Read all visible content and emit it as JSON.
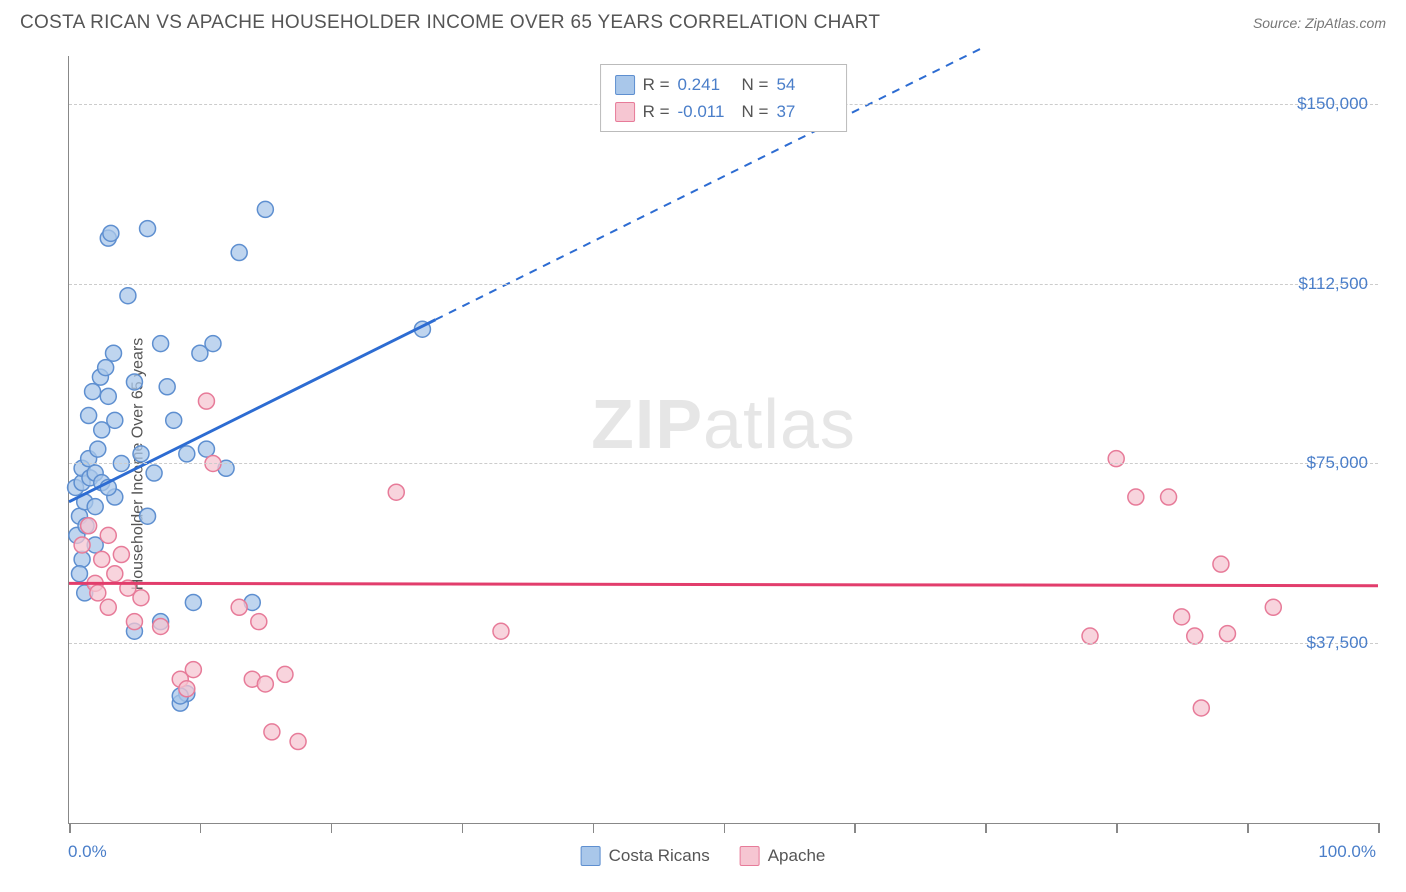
{
  "header": {
    "title": "COSTA RICAN VS APACHE HOUSEHOLDER INCOME OVER 65 YEARS CORRELATION CHART",
    "source_label": "Source:",
    "source_name": "ZipAtlas.com"
  },
  "watermark": {
    "zip": "ZIP",
    "atlas": "atlas"
  },
  "y_axis": {
    "label": "Householder Income Over 65 years",
    "min": 0,
    "max": 160000,
    "ticks": [
      37500,
      75000,
      112500,
      150000
    ],
    "tick_labels": [
      "$37,500",
      "$75,000",
      "$112,500",
      "$150,000"
    ],
    "tick_color": "#4a7ec9",
    "grid_color": "#cccccc",
    "label_fontsize": 16
  },
  "x_axis": {
    "min": 0,
    "max": 100,
    "min_label": "0.0%",
    "max_label": "100.0%",
    "ticks": [
      0,
      10,
      20,
      30,
      40,
      50,
      60,
      70,
      80,
      90,
      100
    ],
    "label_color": "#4a7ec9"
  },
  "series": {
    "costa_ricans": {
      "label": "Costa Ricans",
      "fill": "#a9c7ea",
      "stroke": "#5e8fd0",
      "trend_color": "#2d6cd2",
      "trend_style": "solid-then-dashed",
      "trend_start": [
        0,
        67000
      ],
      "trend_solid_end": [
        28,
        105000
      ],
      "trend_dashed_end": [
        70,
        162000
      ],
      "R": "0.241",
      "N": "54",
      "points": [
        [
          0.5,
          70000
        ],
        [
          0.6,
          60000
        ],
        [
          0.8,
          64000
        ],
        [
          1.0,
          71000
        ],
        [
          1.0,
          74000
        ],
        [
          1.2,
          67000
        ],
        [
          1.3,
          62000
        ],
        [
          1.5,
          76000
        ],
        [
          1.5,
          85000
        ],
        [
          1.6,
          72000
        ],
        [
          1.8,
          90000
        ],
        [
          2.0,
          73000
        ],
        [
          2.0,
          66000
        ],
        [
          2.2,
          78000
        ],
        [
          2.4,
          93000
        ],
        [
          2.5,
          82000
        ],
        [
          2.5,
          71000
        ],
        [
          2.8,
          95000
        ],
        [
          3.0,
          122000
        ],
        [
          3.0,
          89000
        ],
        [
          3.2,
          123000
        ],
        [
          3.4,
          98000
        ],
        [
          3.5,
          84000
        ],
        [
          3.5,
          68000
        ],
        [
          4.0,
          75000
        ],
        [
          4.5,
          110000
        ],
        [
          5.0,
          92000
        ],
        [
          5.5,
          77000
        ],
        [
          6.0,
          124000
        ],
        [
          6.5,
          73000
        ],
        [
          7.0,
          100000
        ],
        [
          7.5,
          91000
        ],
        [
          8.0,
          84000
        ],
        [
          9.0,
          77000
        ],
        [
          9.5,
          46000
        ],
        [
          10.0,
          98000
        ],
        [
          10.5,
          78000
        ],
        [
          11.0,
          100000
        ],
        [
          12.0,
          74000
        ],
        [
          13.0,
          119000
        ],
        [
          14.0,
          46000
        ],
        [
          15.0,
          128000
        ],
        [
          8.5,
          25000
        ],
        [
          9.0,
          27000
        ],
        [
          8.5,
          26500
        ],
        [
          5.0,
          40000
        ],
        [
          7.0,
          42000
        ],
        [
          2.0,
          58000
        ],
        [
          27.0,
          103000
        ],
        [
          6.0,
          64000
        ],
        [
          1.0,
          55000
        ],
        [
          0.8,
          52000
        ],
        [
          1.2,
          48000
        ],
        [
          3.0,
          70000
        ]
      ]
    },
    "apache": {
      "label": "Apache",
      "fill": "#f6c6d2",
      "stroke": "#e77b99",
      "trend_color": "#e23d6c",
      "trend_style": "solid",
      "trend_start": [
        0,
        50000
      ],
      "trend_end": [
        100,
        49500
      ],
      "R": "-0.011",
      "N": "37",
      "points": [
        [
          1.0,
          58000
        ],
        [
          1.5,
          62000
        ],
        [
          2.0,
          50000
        ],
        [
          2.2,
          48000
        ],
        [
          2.5,
          55000
        ],
        [
          3.0,
          45000
        ],
        [
          3.0,
          60000
        ],
        [
          3.5,
          52000
        ],
        [
          4.0,
          56000
        ],
        [
          4.5,
          49000
        ],
        [
          5.0,
          42000
        ],
        [
          5.5,
          47000
        ],
        [
          7.0,
          41000
        ],
        [
          8.5,
          30000
        ],
        [
          9.0,
          28000
        ],
        [
          9.5,
          32000
        ],
        [
          10.5,
          88000
        ],
        [
          11.0,
          75000
        ],
        [
          13.0,
          45000
        ],
        [
          14.0,
          30000
        ],
        [
          14.5,
          42000
        ],
        [
          15.0,
          29000
        ],
        [
          15.5,
          19000
        ],
        [
          16.5,
          31000
        ],
        [
          17.5,
          17000
        ],
        [
          25.0,
          69000
        ],
        [
          33.0,
          40000
        ],
        [
          80.0,
          76000
        ],
        [
          81.5,
          68000
        ],
        [
          84.0,
          68000
        ],
        [
          85.0,
          43000
        ],
        [
          88.0,
          54000
        ],
        [
          78.0,
          39000
        ],
        [
          86.0,
          39000
        ],
        [
          88.5,
          39500
        ],
        [
          92.0,
          45000
        ],
        [
          86.5,
          24000
        ]
      ]
    }
  },
  "legend_top": {
    "r_label": "R =",
    "n_label": "N ="
  },
  "styling": {
    "background_color": "#ffffff",
    "axis_color": "#888888",
    "marker_radius": 8,
    "marker_opacity": 0.75,
    "marker_stroke_width": 1.5,
    "trend_line_width": 3,
    "title_color": "#555555",
    "title_fontsize": 19
  }
}
